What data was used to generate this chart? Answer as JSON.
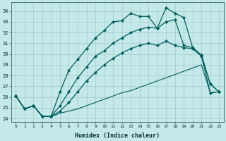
{
  "xlabel": "Humidex (Indice chaleur)",
  "bg_color": "#c5e8e8",
  "grid_color": "#a0cccc",
  "line_color": "#006060",
  "yticks": [
    24,
    25,
    26,
    27,
    28,
    29,
    30,
    31,
    32,
    33,
    34
  ],
  "xticks": [
    0,
    1,
    2,
    3,
    4,
    5,
    6,
    7,
    8,
    9,
    10,
    11,
    12,
    13,
    14,
    15,
    16,
    17,
    18,
    19,
    20,
    21,
    22,
    23
  ],
  "xlim": [
    -0.5,
    23.5
  ],
  "ylim": [
    23.7,
    34.8
  ],
  "curve1_x": [
    0,
    1,
    2,
    3,
    4,
    5,
    6,
    7,
    8,
    9,
    10,
    11,
    12,
    13,
    14,
    15,
    16,
    17,
    18,
    19,
    20,
    21,
    22,
    23
  ],
  "curve1_y": [
    26.1,
    24.9,
    25.2,
    24.2,
    24.2,
    26.5,
    28.5,
    29.5,
    30.5,
    31.5,
    32.2,
    33.0,
    33.1,
    33.8,
    33.5,
    33.5,
    32.4,
    34.3,
    33.8,
    33.4,
    30.6,
    29.9,
    27.2,
    26.5
  ],
  "curve2_x": [
    0,
    1,
    2,
    3,
    4,
    5,
    6,
    7,
    8,
    9,
    10,
    11,
    12,
    13,
    14,
    15,
    16,
    17,
    18,
    19,
    20,
    21,
    22,
    23
  ],
  "curve2_y": [
    26.1,
    24.9,
    25.2,
    24.2,
    24.2,
    25.2,
    26.5,
    27.8,
    28.8,
    29.8,
    30.3,
    31.0,
    31.5,
    32.0,
    32.3,
    32.5,
    32.4,
    33.0,
    33.2,
    30.8,
    30.6,
    29.9,
    27.2,
    26.5
  ],
  "curve3_x": [
    0,
    1,
    2,
    3,
    4,
    5,
    6,
    7,
    8,
    9,
    10,
    11,
    12,
    13,
    14,
    15,
    16,
    17,
    18,
    19,
    20,
    21,
    22,
    23
  ],
  "curve3_y": [
    26.1,
    24.9,
    25.2,
    24.2,
    24.2,
    24.7,
    25.5,
    26.5,
    27.5,
    28.3,
    29.0,
    29.6,
    30.1,
    30.5,
    30.8,
    31.0,
    30.8,
    31.2,
    30.8,
    30.6,
    30.5,
    29.8,
    26.4,
    26.5
  ],
  "curve4_x": [
    0,
    1,
    2,
    3,
    4,
    5,
    6,
    7,
    8,
    9,
    10,
    11,
    12,
    13,
    14,
    15,
    16,
    17,
    18,
    19,
    20,
    21,
    22,
    23
  ],
  "curve4_y": [
    26.1,
    24.9,
    25.2,
    24.2,
    24.2,
    24.5,
    24.7,
    24.9,
    25.2,
    25.5,
    25.8,
    26.1,
    26.4,
    26.6,
    26.9,
    27.2,
    27.5,
    27.8,
    28.1,
    28.4,
    28.7,
    29.0,
    26.4,
    26.5
  ]
}
